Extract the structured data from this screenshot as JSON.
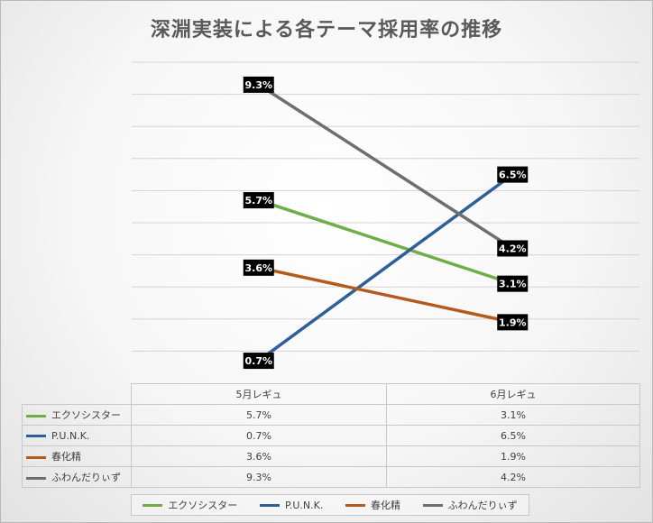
{
  "chart_data": {
    "type": "line",
    "title": "深淵実装による各テーマ採用率の推移",
    "categories": [
      "5月レギュ",
      "6月レギュ"
    ],
    "value_format": "%",
    "ylim": [
      0,
      10
    ],
    "grid": true,
    "legend_position": "bottom",
    "data_table": true,
    "series": [
      {
        "name": "エクソシスター",
        "color": "#70ad47",
        "values": [
          5.7,
          3.1
        ]
      },
      {
        "name": "P.U.N.K.",
        "color": "#2e5f99",
        "values": [
          0.7,
          6.5
        ]
      },
      {
        "name": "春化精",
        "color": "#b45a1c",
        "values": [
          3.6,
          1.9
        ]
      },
      {
        "name": "ふわんだりぃず",
        "color": "#6e6e6e",
        "values": [
          9.3,
          4.2
        ]
      }
    ],
    "table_values": [
      [
        "5.7%",
        "3.1%"
      ],
      [
        "0.7%",
        "6.5%"
      ],
      [
        "3.6%",
        "1.9%"
      ],
      [
        "9.3%",
        "4.2%"
      ]
    ],
    "data_labels": [
      [
        "5.7%",
        "3.1%"
      ],
      [
        "0.7%",
        "6.5%"
      ],
      [
        "3.6%",
        "1.9%"
      ],
      [
        "9.3%",
        "4.2%"
      ]
    ]
  }
}
